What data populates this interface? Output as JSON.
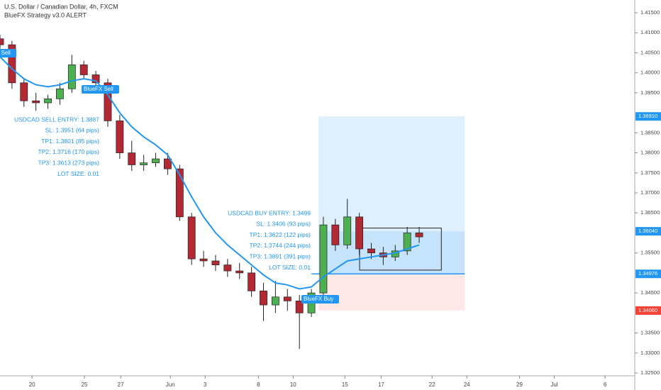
{
  "chart_data": {
    "type": "candlestick",
    "title": "U.S. Dollar / Canadian Dollar, 4h, FXCM",
    "subtitle": "BlueFX Strategy v3.0 ALERT",
    "up_color": "#4caf50",
    "down_color": "#b22833",
    "xlim": [
      0,
      212
    ],
    "xticks": [
      {
        "value": 10.7,
        "label": "20"
      },
      {
        "value": 28.2,
        "label": "25"
      },
      {
        "value": 40.3,
        "label": "27"
      },
      {
        "value": 56.9,
        "label": "Jun"
      },
      {
        "value": 68.5,
        "label": "3"
      },
      {
        "value": 86.3,
        "label": "8"
      },
      {
        "value": 97.9,
        "label": "10"
      },
      {
        "value": 115.2,
        "label": "15"
      },
      {
        "value": 127.3,
        "label": "17"
      },
      {
        "value": 144.3,
        "label": "22"
      },
      {
        "value": 155.9,
        "label": "24"
      },
      {
        "value": 173.5,
        "label": "29"
      },
      {
        "value": 185.1,
        "label": "Jul"
      },
      {
        "value": 202.1,
        "label": "6"
      }
    ],
    "ylim": [
      1.325,
      1.415
    ],
    "yticks": [
      {
        "value": 1.415,
        "label": "1.41500"
      },
      {
        "value": 1.41,
        "label": "1.41000"
      },
      {
        "value": 1.405,
        "label": "1.40500"
      },
      {
        "value": 1.4,
        "label": "1.40000"
      },
      {
        "value": 1.395,
        "label": "1.39500"
      },
      {
        "value": 1.385,
        "label": "1.38500"
      },
      {
        "value": 1.38,
        "label": "1.38000"
      },
      {
        "value": 1.375,
        "label": "1.37500"
      },
      {
        "value": 1.37,
        "label": "1.37000"
      },
      {
        "value": 1.365,
        "label": "1.36500"
      },
      {
        "value": 1.355,
        "label": "1.35500"
      },
      {
        "value": 1.345,
        "label": "1.34500"
      },
      {
        "value": 1.335,
        "label": "1.33500"
      },
      {
        "value": 1.33,
        "label": "1.33000"
      },
      {
        "value": 1.325,
        "label": "1.32500"
      }
    ],
    "x": [
      0,
      4,
      8,
      12,
      16,
      20,
      24,
      28,
      32,
      36,
      40,
      44,
      48,
      52,
      56,
      60,
      64,
      68,
      72,
      76,
      80,
      84,
      88,
      92,
      96,
      100,
      104,
      108,
      112,
      116,
      120,
      124,
      128,
      132,
      136,
      140
    ],
    "open": [
      1.4085,
      1.407,
      1.3975,
      1.393,
      1.3925,
      1.3935,
      1.396,
      1.402,
      1.3995,
      1.3975,
      1.388,
      1.38,
      1.377,
      1.3775,
      1.3785,
      1.376,
      1.364,
      1.3535,
      1.353,
      1.352,
      1.3505,
      1.35,
      1.3455,
      1.342,
      1.344,
      1.343,
      1.34,
      1.345,
      1.362,
      1.357,
      1.364,
      1.356,
      1.355,
      1.354,
      1.3555,
      1.36
    ],
    "high": [
      1.4095,
      1.408,
      1.3985,
      1.395,
      1.3945,
      1.3975,
      1.4045,
      1.403,
      1.4005,
      1.3985,
      1.3895,
      1.383,
      1.3795,
      1.38,
      1.38,
      1.377,
      1.365,
      1.3555,
      1.3545,
      1.3535,
      1.3525,
      1.3515,
      1.3475,
      1.348,
      1.346,
      1.3445,
      1.346,
      1.364,
      1.3635,
      1.3685,
      1.365,
      1.3575,
      1.3565,
      1.357,
      1.3615,
      1.3615
    ],
    "low": [
      1.406,
      1.396,
      1.3915,
      1.3905,
      1.391,
      1.392,
      1.395,
      1.3985,
      1.396,
      1.3865,
      1.3785,
      1.3755,
      1.3755,
      1.3765,
      1.3745,
      1.363,
      1.352,
      1.3515,
      1.3505,
      1.349,
      1.3485,
      1.344,
      1.338,
      1.34,
      1.3405,
      1.331,
      1.339,
      1.344,
      1.3555,
      1.356,
      1.3545,
      1.3535,
      1.352,
      1.353,
      1.3545,
      1.3575
    ],
    "close": [
      1.407,
      1.3975,
      1.393,
      1.3925,
      1.3935,
      1.396,
      1.402,
      1.3995,
      1.3975,
      1.388,
      1.38,
      1.377,
      1.3775,
      1.3785,
      1.376,
      1.364,
      1.3535,
      1.353,
      1.352,
      1.3505,
      1.35,
      1.3455,
      1.342,
      1.344,
      1.343,
      1.34,
      1.345,
      1.362,
      1.357,
      1.364,
      1.356,
      1.355,
      1.354,
      1.3555,
      1.36,
      1.359
    ],
    "ma": {
      "color": "#2196f3",
      "values": [
        1.404,
        1.401,
        1.3985,
        1.397,
        1.3965,
        1.397,
        1.398,
        1.3985,
        1.398,
        1.3945,
        1.39,
        1.3865,
        1.384,
        1.382,
        1.3795,
        1.3745,
        1.369,
        1.364,
        1.36,
        1.357,
        1.3545,
        1.352,
        1.3495,
        1.3475,
        1.347,
        1.346,
        1.3465,
        1.349,
        1.351,
        1.353,
        1.3535,
        1.354,
        1.3545,
        1.355,
        1.356,
        1.357
      ]
    },
    "position": {
      "x": [
        106.4,
        155.2
      ],
      "target": {
        "value": 1.3891,
        "label": "1.38910",
        "color": "#2196f3"
      },
      "current": {
        "value": 1.3604,
        "label": "1.36040",
        "color": "#2196f3"
      },
      "entry": {
        "value": 1.34976,
        "label": "1.34976",
        "color": "#2196f3"
      },
      "stop": {
        "value": 1.3406,
        "label": "1.34060",
        "color": "#f44336"
      }
    },
    "range_box": {
      "x": [
        120.1,
        147.4
      ],
      "price": [
        1.3507,
        1.3612
      ]
    },
    "signals": [
      "BlueFX Sell",
      "BlueFX Sell",
      "BlueFX Buy"
    ],
    "annotations": {
      "sell": [
        "USDCAD SELL ENTRY: 1.3887",
        "SL: 1.3951 (64 pips)",
        "TP1: 1.3801 (85 pips)",
        "TP2: 1.3716 (170 pips)",
        "TP3: 1.3613 (273 pips)",
        "LOT SIZE: 0.01"
      ],
      "buy": [
        "USDCAD BUY ENTRY: 1.3499",
        "SL: 1.3406 (93 pips)",
        "TP1: 1.3622 (122 pips)",
        "TP2: 1.3744 (244 pips)",
        "TP3: 1.3891 (391 pips)",
        "LOT SIZE: 0.01"
      ]
    }
  }
}
